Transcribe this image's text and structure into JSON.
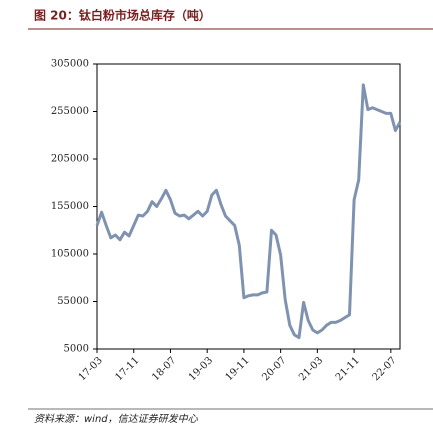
{
  "chart_data": {
    "type": "line",
    "title": "图 20：钛白粉市场总库存（吨）",
    "source": "资料来源：wind，信达证券研发中心",
    "categories": [
      "17-03",
      null,
      null,
      null,
      null,
      null,
      null,
      null,
      "17-11",
      null,
      null,
      null,
      null,
      null,
      null,
      null,
      "18-07",
      null,
      null,
      null,
      null,
      null,
      null,
      null,
      "19-03",
      null,
      null,
      null,
      null,
      null,
      null,
      null,
      "19-11",
      null,
      null,
      null,
      null,
      null,
      null,
      null,
      "20-07",
      null,
      null,
      null,
      null,
      null,
      null,
      null,
      "21-03",
      null,
      null,
      null,
      null,
      null,
      null,
      null,
      "21-11",
      null,
      null,
      null,
      null,
      null,
      null,
      null,
      "22-07",
      null,
      null
    ],
    "series": [
      {
        "color": "#7f93b0",
        "values": [
          135000,
          149000,
          135000,
          122000,
          125000,
          120000,
          128000,
          124000,
          135000,
          146000,
          145000,
          150000,
          160000,
          155000,
          163000,
          172000,
          162000,
          148000,
          145000,
          146000,
          142000,
          146000,
          150000,
          145000,
          150000,
          167000,
          172000,
          157000,
          145000,
          140000,
          135000,
          114000,
          59000,
          61000,
          62000,
          62000,
          64000,
          65000,
          130000,
          125000,
          104000,
          57000,
          30000,
          20000,
          17000,
          54000,
          35000,
          25000,
          22000,
          25000,
          30000,
          33000,
          33000,
          35000,
          38000,
          41000,
          162000,
          183000,
          283000,
          257000,
          259000,
          257000,
          255000,
          253000,
          253000,
          235000,
          244000
        ]
      }
    ],
    "ylim": [
      5000,
      305000
    ],
    "yticks": [
      5000,
      55000,
      105000,
      155000,
      205000,
      255000,
      305000
    ]
  }
}
